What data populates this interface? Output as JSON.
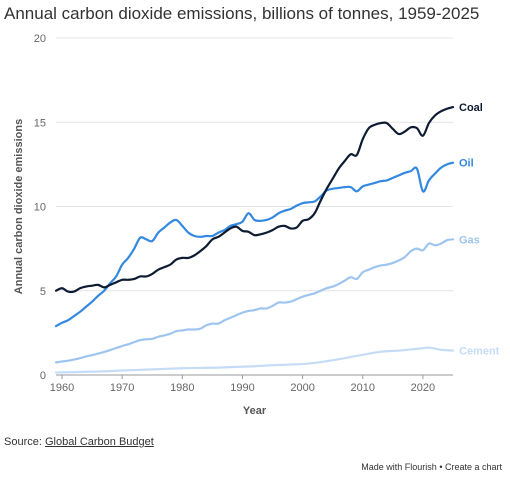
{
  "chart_data": {
    "type": "line",
    "title": "Annual carbon dioxide emissions, billions of tonnes, 1959-2025",
    "xlabel": "Year",
    "ylabel": "Annual carbon dioxide emissions",
    "xlim": [
      1959,
      2025
    ],
    "ylim": [
      0,
      20
    ],
    "x_ticks": [
      1960,
      1970,
      1980,
      1990,
      2000,
      2010,
      2020
    ],
    "y_ticks": [
      0,
      5,
      10,
      15,
      20
    ],
    "grid": true,
    "legend": "inline-right",
    "series": [
      {
        "name": "Coal",
        "color": "#0d1b33",
        "points": [
          [
            1959,
            5.0
          ],
          [
            1960,
            5.15
          ],
          [
            1961,
            4.95
          ],
          [
            1962,
            4.95
          ],
          [
            1963,
            5.15
          ],
          [
            1964,
            5.25
          ],
          [
            1965,
            5.3
          ],
          [
            1966,
            5.35
          ],
          [
            1967,
            5.2
          ],
          [
            1968,
            5.35
          ],
          [
            1969,
            5.5
          ],
          [
            1970,
            5.65
          ],
          [
            1971,
            5.65
          ],
          [
            1972,
            5.7
          ],
          [
            1973,
            5.85
          ],
          [
            1974,
            5.85
          ],
          [
            1975,
            6.0
          ],
          [
            1976,
            6.25
          ],
          [
            1977,
            6.4
          ],
          [
            1978,
            6.55
          ],
          [
            1979,
            6.85
          ],
          [
            1980,
            6.95
          ],
          [
            1981,
            6.95
          ],
          [
            1982,
            7.1
          ],
          [
            1983,
            7.35
          ],
          [
            1984,
            7.65
          ],
          [
            1985,
            8.05
          ],
          [
            1986,
            8.2
          ],
          [
            1987,
            8.45
          ],
          [
            1988,
            8.7
          ],
          [
            1989,
            8.8
          ],
          [
            1990,
            8.55
          ],
          [
            1991,
            8.5
          ],
          [
            1992,
            8.3
          ],
          [
            1993,
            8.35
          ],
          [
            1994,
            8.45
          ],
          [
            1995,
            8.6
          ],
          [
            1996,
            8.8
          ],
          [
            1997,
            8.85
          ],
          [
            1998,
            8.7
          ],
          [
            1999,
            8.75
          ],
          [
            2000,
            9.15
          ],
          [
            2001,
            9.25
          ],
          [
            2002,
            9.6
          ],
          [
            2003,
            10.35
          ],
          [
            2004,
            11.05
          ],
          [
            2005,
            11.65
          ],
          [
            2006,
            12.25
          ],
          [
            2007,
            12.7
          ],
          [
            2008,
            13.1
          ],
          [
            2009,
            13.05
          ],
          [
            2010,
            14.0
          ],
          [
            2011,
            14.65
          ],
          [
            2012,
            14.85
          ],
          [
            2013,
            14.95
          ],
          [
            2014,
            14.95
          ],
          [
            2015,
            14.6
          ],
          [
            2016,
            14.3
          ],
          [
            2017,
            14.45
          ],
          [
            2018,
            14.7
          ],
          [
            2019,
            14.65
          ],
          [
            2020,
            14.2
          ],
          [
            2021,
            14.95
          ],
          [
            2022,
            15.4
          ],
          [
            2023,
            15.65
          ],
          [
            2024,
            15.8
          ],
          [
            2025,
            15.9
          ]
        ]
      },
      {
        "name": "Oil",
        "color": "#3388e0",
        "points": [
          [
            1959,
            2.9
          ],
          [
            1960,
            3.1
          ],
          [
            1961,
            3.25
          ],
          [
            1962,
            3.5
          ],
          [
            1963,
            3.75
          ],
          [
            1964,
            4.05
          ],
          [
            1965,
            4.35
          ],
          [
            1966,
            4.7
          ],
          [
            1967,
            5.0
          ],
          [
            1968,
            5.45
          ],
          [
            1969,
            5.85
          ],
          [
            1970,
            6.55
          ],
          [
            1971,
            6.95
          ],
          [
            1972,
            7.5
          ],
          [
            1973,
            8.15
          ],
          [
            1974,
            8.05
          ],
          [
            1975,
            7.95
          ],
          [
            1976,
            8.45
          ],
          [
            1977,
            8.75
          ],
          [
            1978,
            9.05
          ],
          [
            1979,
            9.2
          ],
          [
            1980,
            8.85
          ],
          [
            1981,
            8.45
          ],
          [
            1982,
            8.25
          ],
          [
            1983,
            8.2
          ],
          [
            1984,
            8.25
          ],
          [
            1985,
            8.25
          ],
          [
            1986,
            8.45
          ],
          [
            1987,
            8.6
          ],
          [
            1988,
            8.85
          ],
          [
            1989,
            8.95
          ],
          [
            1990,
            9.1
          ],
          [
            1991,
            9.6
          ],
          [
            1992,
            9.2
          ],
          [
            1993,
            9.15
          ],
          [
            1994,
            9.2
          ],
          [
            1995,
            9.35
          ],
          [
            1996,
            9.6
          ],
          [
            1997,
            9.75
          ],
          [
            1998,
            9.85
          ],
          [
            1999,
            10.05
          ],
          [
            2000,
            10.2
          ],
          [
            2001,
            10.25
          ],
          [
            2002,
            10.3
          ],
          [
            2003,
            10.6
          ],
          [
            2004,
            10.95
          ],
          [
            2005,
            11.05
          ],
          [
            2006,
            11.1
          ],
          [
            2007,
            11.15
          ],
          [
            2008,
            11.15
          ],
          [
            2009,
            10.9
          ],
          [
            2010,
            11.2
          ],
          [
            2011,
            11.3
          ],
          [
            2012,
            11.4
          ],
          [
            2013,
            11.5
          ],
          [
            2014,
            11.55
          ],
          [
            2015,
            11.7
          ],
          [
            2016,
            11.85
          ],
          [
            2017,
            12.0
          ],
          [
            2018,
            12.1
          ],
          [
            2019,
            12.25
          ],
          [
            2020,
            10.9
          ],
          [
            2021,
            11.55
          ],
          [
            2022,
            11.95
          ],
          [
            2023,
            12.3
          ],
          [
            2024,
            12.5
          ],
          [
            2025,
            12.6
          ]
        ]
      },
      {
        "name": "Gas",
        "color": "#9ec5f0",
        "points": [
          [
            1959,
            0.75
          ],
          [
            1960,
            0.8
          ],
          [
            1961,
            0.85
          ],
          [
            1962,
            0.92
          ],
          [
            1963,
            1.0
          ],
          [
            1964,
            1.1
          ],
          [
            1965,
            1.18
          ],
          [
            1966,
            1.27
          ],
          [
            1967,
            1.37
          ],
          [
            1968,
            1.48
          ],
          [
            1969,
            1.6
          ],
          [
            1970,
            1.72
          ],
          [
            1971,
            1.82
          ],
          [
            1972,
            1.95
          ],
          [
            1973,
            2.07
          ],
          [
            1974,
            2.12
          ],
          [
            1975,
            2.15
          ],
          [
            1976,
            2.27
          ],
          [
            1977,
            2.35
          ],
          [
            1978,
            2.45
          ],
          [
            1979,
            2.6
          ],
          [
            1980,
            2.65
          ],
          [
            1981,
            2.7
          ],
          [
            1982,
            2.7
          ],
          [
            1983,
            2.75
          ],
          [
            1984,
            2.95
          ],
          [
            1985,
            3.05
          ],
          [
            1986,
            3.05
          ],
          [
            1987,
            3.25
          ],
          [
            1988,
            3.4
          ],
          [
            1989,
            3.55
          ],
          [
            1990,
            3.7
          ],
          [
            1991,
            3.8
          ],
          [
            1992,
            3.85
          ],
          [
            1993,
            3.95
          ],
          [
            1994,
            3.95
          ],
          [
            1995,
            4.1
          ],
          [
            1996,
            4.3
          ],
          [
            1997,
            4.3
          ],
          [
            1998,
            4.35
          ],
          [
            1999,
            4.5
          ],
          [
            2000,
            4.65
          ],
          [
            2001,
            4.75
          ],
          [
            2002,
            4.85
          ],
          [
            2003,
            5.0
          ],
          [
            2004,
            5.15
          ],
          [
            2005,
            5.25
          ],
          [
            2006,
            5.4
          ],
          [
            2007,
            5.6
          ],
          [
            2008,
            5.8
          ],
          [
            2009,
            5.7
          ],
          [
            2010,
            6.1
          ],
          [
            2011,
            6.25
          ],
          [
            2012,
            6.4
          ],
          [
            2013,
            6.5
          ],
          [
            2014,
            6.55
          ],
          [
            2015,
            6.65
          ],
          [
            2016,
            6.8
          ],
          [
            2017,
            7.0
          ],
          [
            2018,
            7.35
          ],
          [
            2019,
            7.5
          ],
          [
            2020,
            7.4
          ],
          [
            2021,
            7.8
          ],
          [
            2022,
            7.7
          ],
          [
            2023,
            7.8
          ],
          [
            2024,
            8.0
          ],
          [
            2025,
            8.05
          ]
        ]
      },
      {
        "name": "Cement",
        "color": "#c5dcf7",
        "points": [
          [
            1959,
            0.15
          ],
          [
            1962,
            0.17
          ],
          [
            1965,
            0.2
          ],
          [
            1968,
            0.23
          ],
          [
            1971,
            0.28
          ],
          [
            1974,
            0.32
          ],
          [
            1977,
            0.36
          ],
          [
            1980,
            0.4
          ],
          [
            1983,
            0.42
          ],
          [
            1986,
            0.44
          ],
          [
            1989,
            0.48
          ],
          [
            1992,
            0.52
          ],
          [
            1995,
            0.58
          ],
          [
            1998,
            0.62
          ],
          [
            2001,
            0.68
          ],
          [
            2004,
            0.82
          ],
          [
            2007,
            1.0
          ],
          [
            2010,
            1.2
          ],
          [
            2013,
            1.38
          ],
          [
            2016,
            1.45
          ],
          [
            2019,
            1.55
          ],
          [
            2021,
            1.62
          ],
          [
            2023,
            1.5
          ],
          [
            2025,
            1.45
          ]
        ]
      }
    ]
  },
  "source": {
    "prefix": "Source: ",
    "link_text": "Global Carbon Budget"
  },
  "footer": {
    "made_with": "Made with Flourish",
    "separator": " • ",
    "create": "Create a chart"
  }
}
